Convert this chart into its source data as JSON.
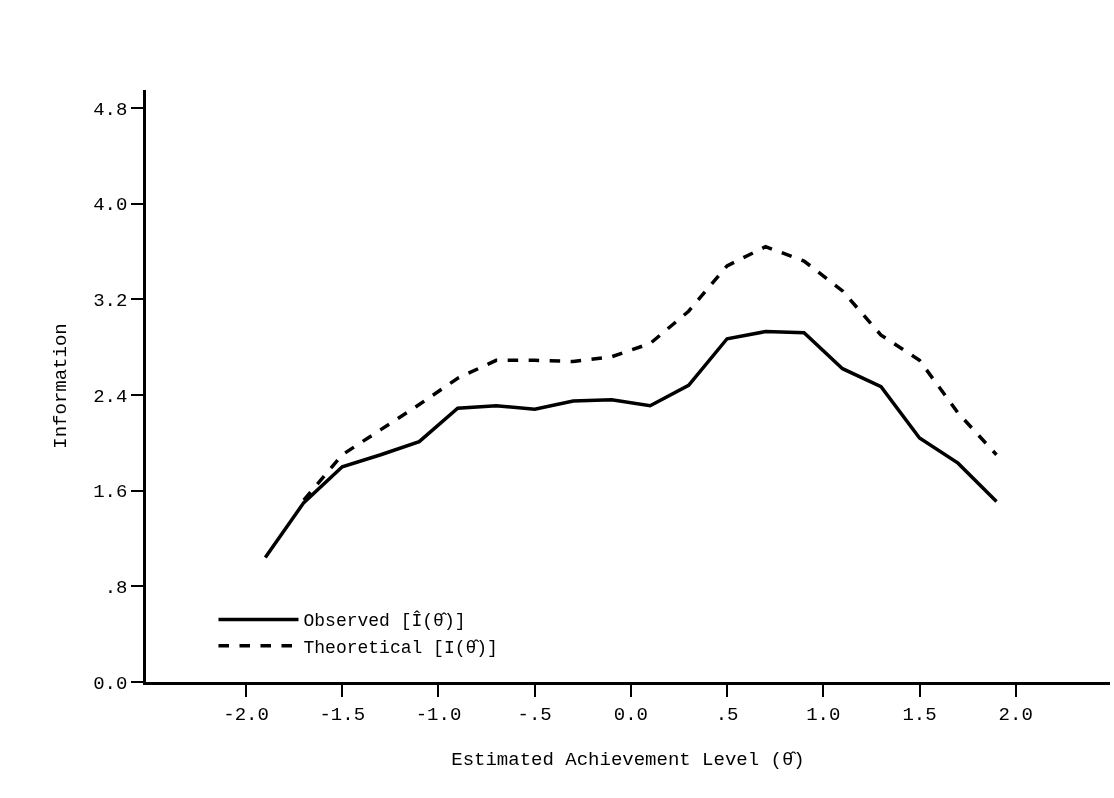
{
  "chart_data": {
    "type": "line",
    "xlabel": "Estimated Achievement Level (θ̂)",
    "ylabel": "Information",
    "x": [
      -1.9,
      -1.7,
      -1.5,
      -1.3,
      -1.1,
      -0.9,
      -0.7,
      -0.5,
      -0.3,
      -0.1,
      0.1,
      0.3,
      0.5,
      0.7,
      0.9,
      1.1,
      1.3,
      1.5,
      1.7,
      1.9
    ],
    "series": [
      {
        "name": "Observed [Î(θ̂)]",
        "color": "#000000",
        "line_style": "solid",
        "values": [
          1.04,
          1.5,
          1.8,
          1.9,
          2.01,
          2.29,
          2.31,
          2.28,
          2.35,
          2.36,
          2.31,
          2.48,
          2.87,
          2.93,
          2.92,
          2.62,
          2.47,
          2.04,
          1.83,
          1.51
        ]
      },
      {
        "name": "Theoretical [I(θ̂)]",
        "color": "#000000",
        "line_style": "dashed",
        "values": [
          null,
          1.52,
          1.9,
          2.11,
          2.32,
          2.54,
          2.69,
          2.69,
          2.68,
          2.72,
          2.83,
          3.1,
          3.48,
          3.64,
          3.52,
          3.27,
          2.9,
          2.69,
          2.25,
          1.9
        ]
      }
    ],
    "xlim": [
      -2.52,
      2.49
    ],
    "ylim": [
      0,
      4.95
    ],
    "xticks": [
      {
        "value": -2.0,
        "label": "-2.0"
      },
      {
        "value": -1.5,
        "label": "-1.5"
      },
      {
        "value": -1.0,
        "label": "-1.0"
      },
      {
        "value": -0.5,
        "label": "-.5"
      },
      {
        "value": 0,
        "label": "0.0"
      },
      {
        "value": 0.5,
        "label": ".5"
      },
      {
        "value": 1.0,
        "label": "1.0"
      },
      {
        "value": 1.5,
        "label": "1.5"
      },
      {
        "value": 2.0,
        "label": "2.0"
      }
    ],
    "yticks": [
      {
        "value": 0,
        "label": "0.0"
      },
      {
        "value": 0.8,
        "label": ".8"
      },
      {
        "value": 1.6,
        "label": "1.6"
      },
      {
        "value": 2.4,
        "label": "2.4"
      },
      {
        "value": 3.2,
        "label": "3.2"
      },
      {
        "value": 4.0,
        "label": "4.0"
      },
      {
        "value": 4.8,
        "label": "4.8"
      }
    ],
    "legend": "bottom left",
    "marker": "none"
  }
}
